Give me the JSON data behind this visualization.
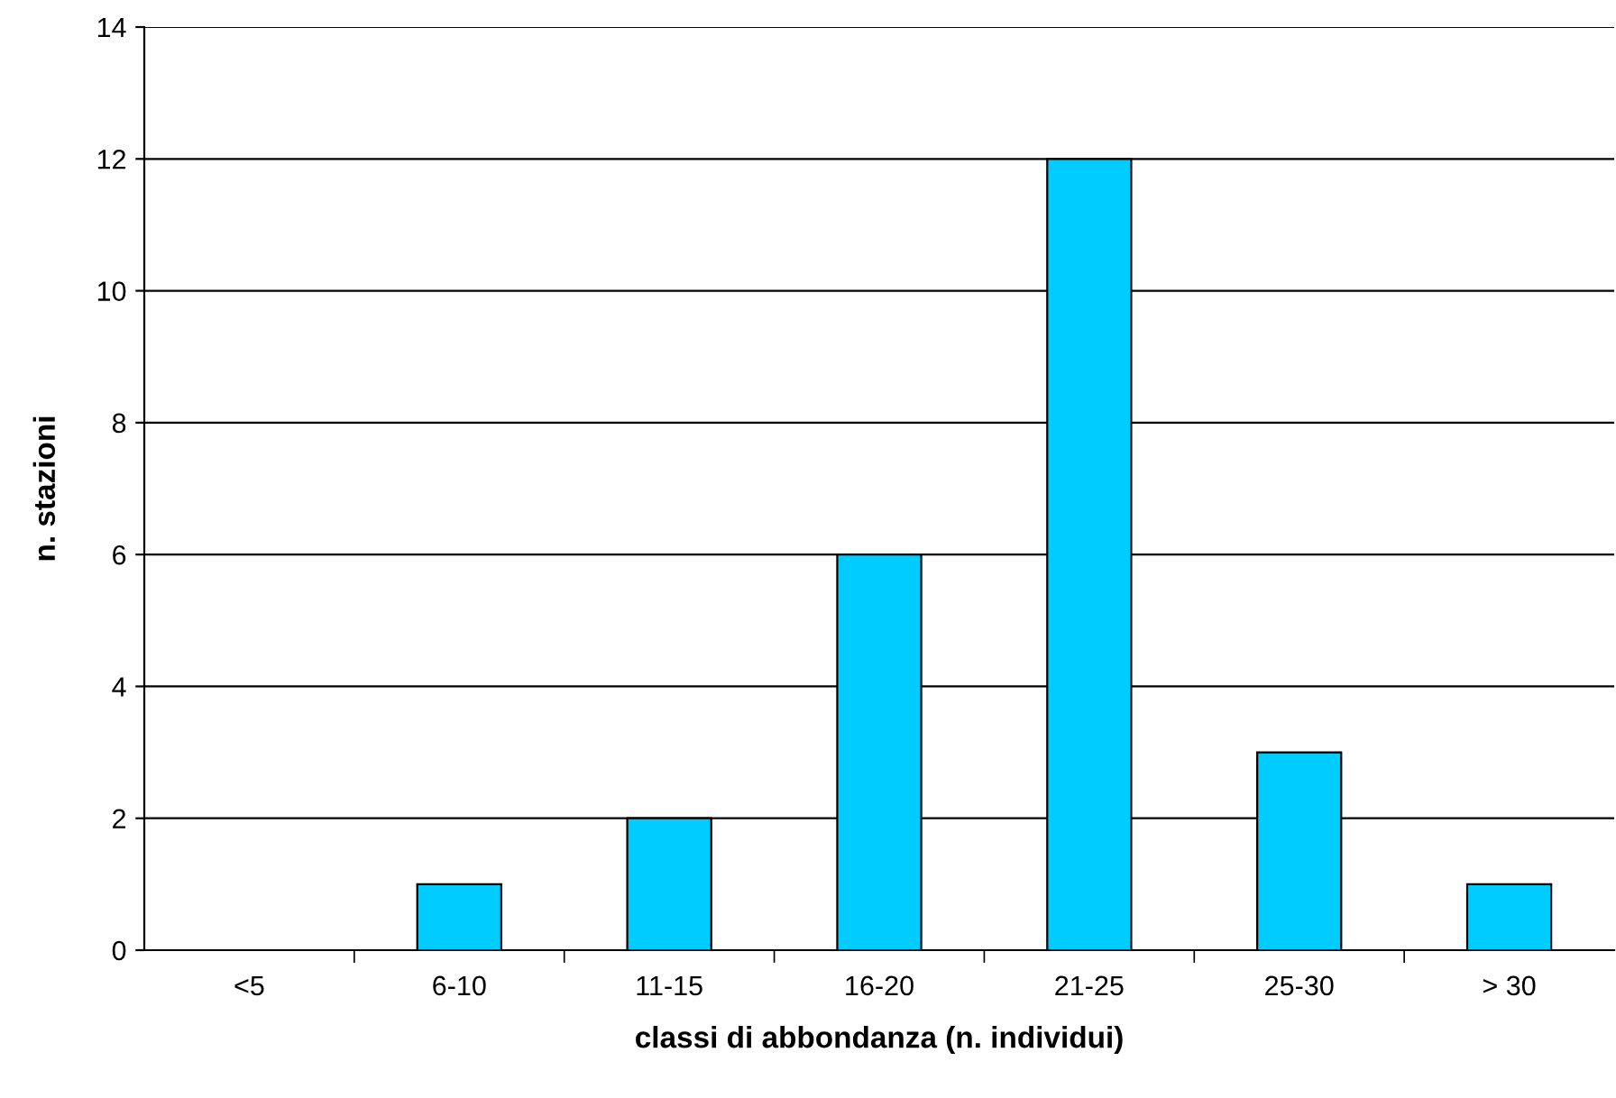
{
  "chart_data": {
    "type": "bar",
    "xlabel": "classi di abbondanza (n. individui)",
    "ylabel": "n. stazioni",
    "categories": [
      "<5",
      "6-10",
      "11-15",
      "16-20",
      "21-25",
      "25-30",
      "> 30"
    ],
    "values": [
      0,
      1,
      2,
      6,
      12,
      3,
      1
    ],
    "color": "#00ccff",
    "ylim": [
      0,
      14
    ],
    "yticks": [
      0,
      2,
      4,
      6,
      8,
      10,
      12,
      14
    ],
    "grid": "y",
    "legend": false
  }
}
